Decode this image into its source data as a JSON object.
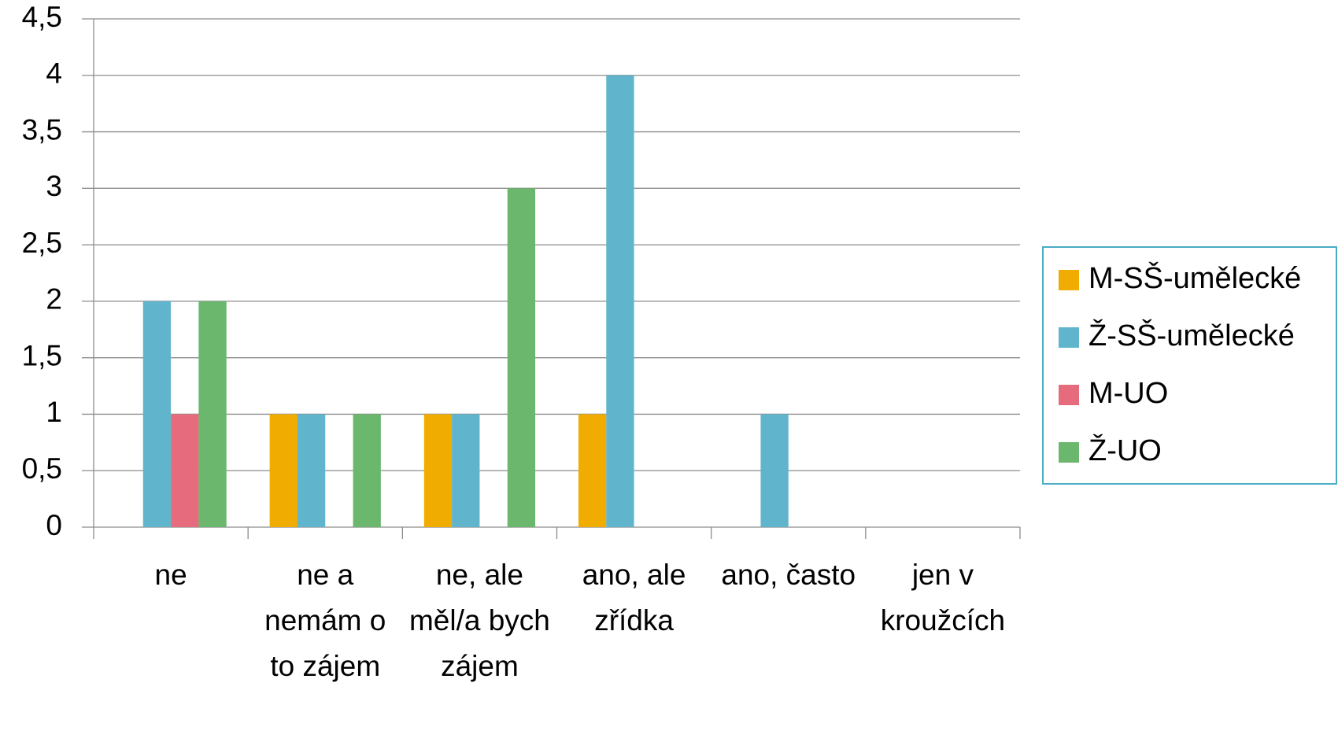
{
  "chart_data": {
    "type": "bar",
    "categories": [
      "ne",
      "ne a nemám o to zájem",
      "ne, ale měl/a bych zájem",
      "ano, ale zřídka",
      "ano, často",
      "jen v kroužcích"
    ],
    "series": [
      {
        "name": "M-SŠ-umělecké",
        "color": "#f0ac00",
        "values": [
          0,
          1,
          1,
          1,
          0,
          0
        ]
      },
      {
        "name": "Ž-SŠ-umělecké",
        "color": "#60b5cc",
        "values": [
          2,
          1,
          1,
          4,
          1,
          0
        ]
      },
      {
        "name": "M-UO",
        "color": "#e66c7d",
        "values": [
          1,
          0,
          0,
          0,
          0,
          0
        ]
      },
      {
        "name": "Ž-UO",
        "color": "#6bb76d",
        "values": [
          2,
          1,
          3,
          0,
          0,
          0
        ]
      }
    ],
    "ylim": [
      0,
      4.5
    ],
    "yticks": [
      0,
      {
        "value": 0.5,
        "label": "0,5"
      },
      1,
      {
        "value": 1.5,
        "label": "1,5"
      },
      2,
      {
        "value": 2.5,
        "label": "2,5"
      },
      3,
      {
        "value": 3.5,
        "label": "3,5"
      },
      4,
      {
        "value": 4.5,
        "label": "4,5"
      }
    ],
    "grid": true,
    "legend": "right"
  }
}
